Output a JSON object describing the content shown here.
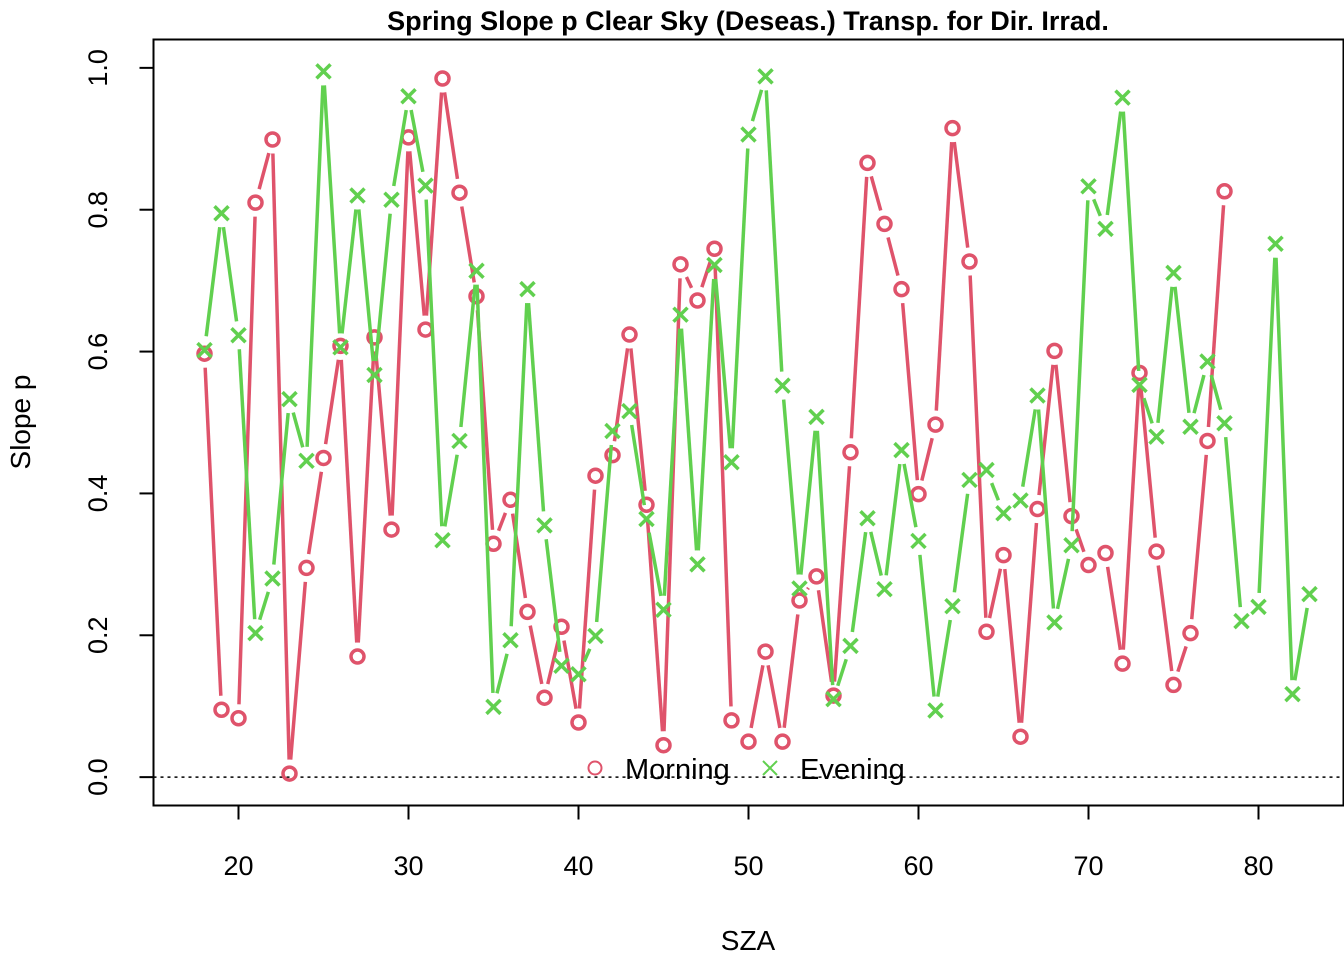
{
  "chart_data": {
    "type": "line",
    "title": "Spring Slope p Clear Sky (Deseas.) Transp. for Dir. Irrad.",
    "xlabel": "SZA",
    "ylabel": "Slope p",
    "xlim": [
      15,
      85
    ],
    "ylim": [
      -0.04,
      1.04
    ],
    "x_ticks": [
      20,
      30,
      40,
      50,
      60,
      70,
      80
    ],
    "y_ticks": [
      0.0,
      0.2,
      0.4,
      0.6,
      0.8,
      1.0
    ],
    "x_tick_labels": [
      "20",
      "30",
      "40",
      "50",
      "60",
      "70",
      "80"
    ],
    "y_tick_labels": [
      "0.0",
      "0.2",
      "0.4",
      "0.6",
      "0.8",
      "1.0"
    ],
    "reference_line": {
      "y": 0.0,
      "style": "dotted"
    },
    "legend": {
      "placement": "bottom-center",
      "orientation": "horizontal"
    },
    "series": [
      {
        "name": "Morning",
        "marker": "circle",
        "color": "#DF536B",
        "x": [
          18,
          19,
          20,
          21,
          22,
          23,
          24,
          25,
          26,
          27,
          28,
          29,
          30,
          31,
          32,
          33,
          34,
          35,
          36,
          37,
          38,
          39,
          40,
          41,
          42,
          43,
          44,
          45,
          46,
          47,
          48,
          49,
          50,
          51,
          52,
          53,
          54,
          55,
          56,
          57,
          58,
          59,
          60,
          61,
          62,
          63,
          64,
          65,
          66,
          67,
          68,
          69,
          70,
          71,
          72,
          73,
          74,
          75,
          76,
          77,
          78
        ],
        "y": [
          0.597,
          0.095,
          0.083,
          0.81,
          0.899,
          0.005,
          0.295,
          0.45,
          0.608,
          0.17,
          0.62,
          0.349,
          0.902,
          0.631,
          0.985,
          0.824,
          0.678,
          0.329,
          0.391,
          0.233,
          0.112,
          0.212,
          0.077,
          0.425,
          0.454,
          0.624,
          0.384,
          0.045,
          0.723,
          0.672,
          0.745,
          0.08,
          0.05,
          0.177,
          0.05,
          0.249,
          0.283,
          0.115,
          0.458,
          0.866,
          0.78,
          0.688,
          0.399,
          0.497,
          0.915,
          0.727,
          0.205,
          0.313,
          0.057,
          0.378,
          0.601,
          0.368,
          0.299,
          0.316,
          0.16,
          0.57,
          0.318,
          0.13,
          0.203,
          0.474,
          0.826
        ]
      },
      {
        "name": "Evening",
        "marker": "cross",
        "color": "#61D04F",
        "x": [
          18,
          19,
          20,
          21,
          22,
          23,
          24,
          25,
          26,
          27,
          28,
          29,
          30,
          31,
          32,
          33,
          34,
          35,
          36,
          37,
          38,
          39,
          40,
          41,
          42,
          43,
          44,
          45,
          46,
          47,
          48,
          49,
          50,
          51,
          52,
          53,
          54,
          55,
          56,
          57,
          58,
          59,
          60,
          61,
          62,
          63,
          64,
          65,
          66,
          67,
          68,
          69,
          70,
          71,
          72,
          73,
          74,
          75,
          76,
          77,
          78,
          79,
          80,
          81,
          82,
          83
        ],
        "y": [
          0.602,
          0.795,
          0.623,
          0.203,
          0.28,
          0.533,
          0.446,
          0.995,
          0.606,
          0.82,
          0.567,
          0.814,
          0.96,
          0.834,
          0.334,
          0.474,
          0.714,
          0.099,
          0.193,
          0.688,
          0.355,
          0.157,
          0.145,
          0.199,
          0.488,
          0.516,
          0.364,
          0.236,
          0.652,
          0.3,
          0.722,
          0.444,
          0.906,
          0.988,
          0.552,
          0.266,
          0.508,
          0.11,
          0.185,
          0.365,
          0.265,
          0.461,
          0.333,
          0.094,
          0.241,
          0.419,
          0.433,
          0.372,
          0.39,
          0.538,
          0.218,
          0.327,
          0.833,
          0.773,
          0.958,
          0.553,
          0.48,
          0.711,
          0.494,
          0.586,
          0.499,
          0.22,
          0.24,
          0.752,
          0.117,
          0.258
        ]
      }
    ]
  }
}
